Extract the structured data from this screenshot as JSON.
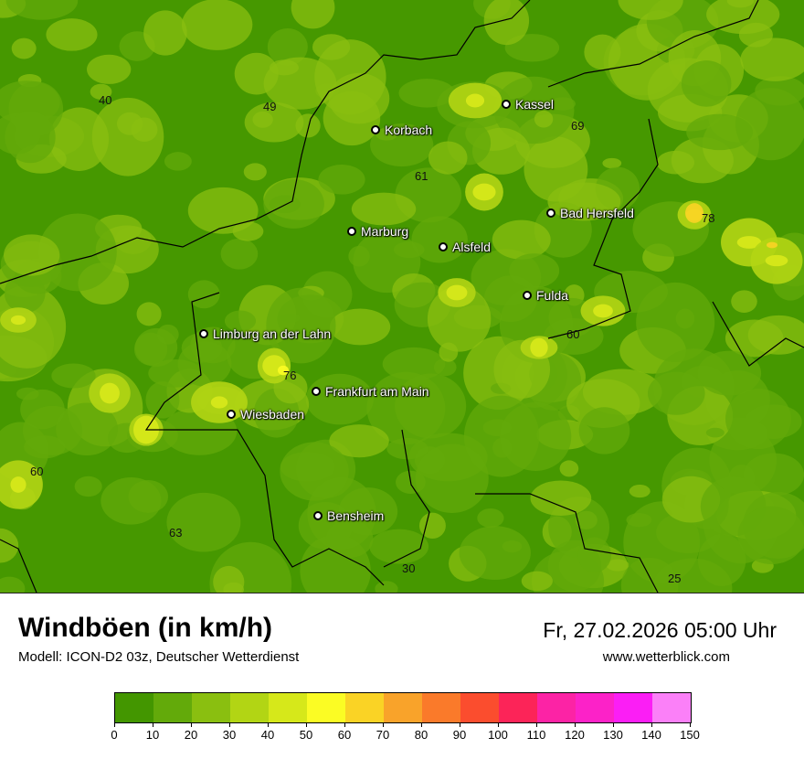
{
  "header": {
    "title": "Windböen (in km/h)",
    "model": "Modell: ICON-D2 03z, Deutscher Wetterdienst",
    "datetime": "Fr, 27.02.2026 05:00 Uhr",
    "website": "www.wetterblick.com"
  },
  "cities": [
    "Kassel",
    "Korbach",
    "Bad Hersfeld",
    "Marburg",
    "Alsfeld",
    "Fulda",
    "Limburg an der Lahn",
    "Frankfurt am Main",
    "Wiesbaden",
    "Bensheim"
  ],
  "values": [
    "40",
    "49",
    "69",
    "61",
    "78",
    "60",
    "76",
    "60",
    "63",
    "30",
    "25"
  ],
  "legend": {
    "ticks": [
      "0",
      "10",
      "20",
      "30",
      "40",
      "50",
      "60",
      "70",
      "80",
      "90",
      "100",
      "110",
      "120",
      "130",
      "140",
      "150"
    ],
    "colors": [
      "#439600",
      "#63aa0a",
      "#8abf10",
      "#b2d514",
      "#d6e81a",
      "#fbfc24",
      "#fad325",
      "#f9a32a",
      "#fa7a2a",
      "#fb4d2e",
      "#fc2458",
      "#fc23a5",
      "#fc22c8",
      "#fb1ef5",
      "#fb80f8"
    ]
  }
}
